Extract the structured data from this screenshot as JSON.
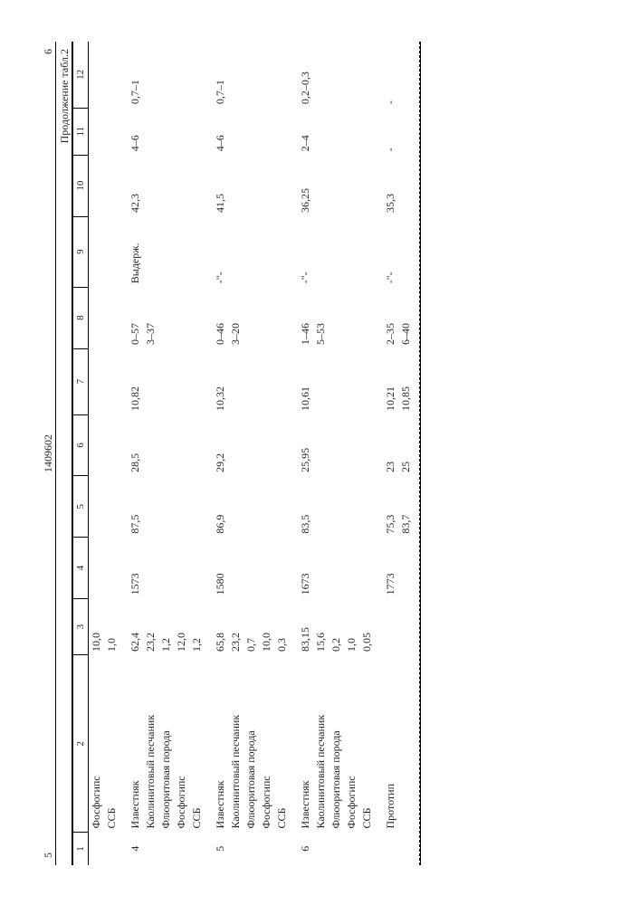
{
  "meta": {
    "page_left": "5",
    "patent_no": "1409602",
    "page_right": "6",
    "caption": "Продолжение табл.2"
  },
  "columns": {
    "h1": "1",
    "h2": "2",
    "h3": "3",
    "h4": "4",
    "h5": "5",
    "h6": "6",
    "h7": "7",
    "h8": "8",
    "h9": "9",
    "h10": "10",
    "h11": "11",
    "h12": "12"
  },
  "rows": [
    {
      "c1": "",
      "c2": "Фосфогипс",
      "c3": "10,0"
    },
    {
      "c1": "",
      "c2": "ССБ",
      "c3": "1,0"
    },
    {
      "group": true,
      "c1": "4",
      "c2": "Известняк",
      "c3": "62,4",
      "c4": "1573",
      "c5": "87,5",
      "c6": "28,5",
      "c7": "10,82",
      "c8": "0–57",
      "c9": "Выдерж.",
      "c10": "42,3",
      "c11": "4–6",
      "c12": "0,7–1"
    },
    {
      "c2": "Каолинитовый песчаник",
      "c3": "23,2",
      "c8": "3–37"
    },
    {
      "c2": "Флюоритовая порода",
      "c3": "1,2"
    },
    {
      "c2": "Фосфогипс",
      "c3": "12,0"
    },
    {
      "c2": "ССБ",
      "c3": "1,2"
    },
    {
      "group": true,
      "c1": "5",
      "c2": "Известняк",
      "c3": "65,8",
      "c4": "1580",
      "c5": "86,9",
      "c6": "29,2",
      "c7": "10,32",
      "c8": "0–46",
      "c9": "-\"-",
      "c10": "41,5",
      "c11": "4–6",
      "c12": "0,7–1"
    },
    {
      "c2": "Каолинитовый песчаник",
      "c3": "23,2",
      "c8": "3–20"
    },
    {
      "c2": "Флюоритовая порода",
      "c3": "0,7"
    },
    {
      "c2": "Фосфогипс",
      "c3": "10,0"
    },
    {
      "c2": "ССБ",
      "c3": "0,3"
    },
    {
      "group": true,
      "c1": "6",
      "c2": "Известняк",
      "c3": "83,15",
      "c4": "1673",
      "c5": "83,5",
      "c6": "25,95",
      "c7": "10,61",
      "c8": "1–46",
      "c9": "-\"-",
      "c10": "36,25",
      "c11": "2–4",
      "c12": "0,2–0,3"
    },
    {
      "c2": "Каолинитовый песчаник",
      "c3": "15,6",
      "c8": "5–53"
    },
    {
      "c2": "Флюоритовая порода",
      "c3": "0,2"
    },
    {
      "c2": "Фосфогипс",
      "c3": "1,0"
    },
    {
      "c2": "ССБ",
      "c3": "0,05"
    },
    {
      "group": true,
      "c1": "",
      "c2": "Прототип",
      "c3": "",
      "c4": "1773",
      "c5": "75,3",
      "c6": "23",
      "c7": "10,21",
      "c8": "2–35",
      "c9": "-\"-",
      "c10": "35,3",
      "c11": "-",
      "c12": "-"
    },
    {
      "c1": "",
      "c2": "",
      "c3": "",
      "c5": "83,7",
      "c6": "25",
      "c7": "10,85",
      "c8": "6–40"
    }
  ]
}
